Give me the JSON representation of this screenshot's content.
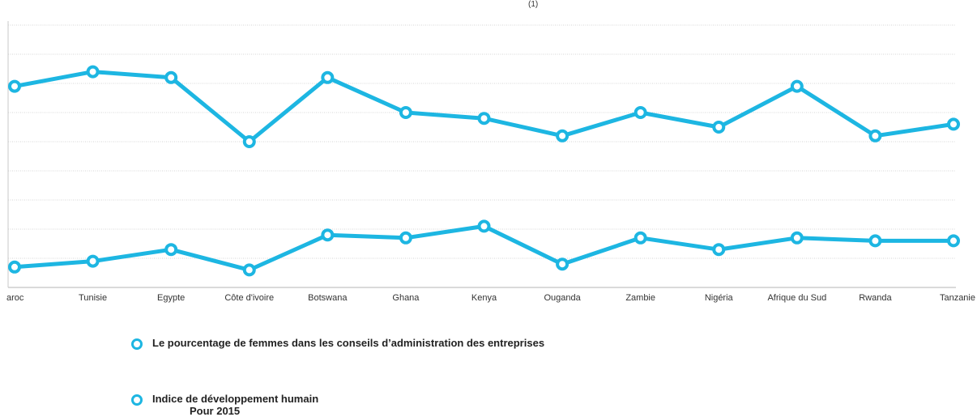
{
  "chart_data": {
    "type": "line",
    "top_mark": "(1)",
    "categories": [
      "aroc",
      "Tunisie",
      "Egypte",
      "Côte d'ivoire",
      "Botswana",
      "Ghana",
      "Kenya",
      "Ouganda",
      "Zambie",
      "Nigéria",
      "Afrique du Sud",
      "Rwanda",
      "Tanzanie"
    ],
    "series": [
      {
        "name": "Le pourcentage de femmes dans les conseils d’administration des entreprises",
        "values": [
          6.9,
          7.4,
          7.2,
          5.0,
          7.2,
          6.0,
          5.8,
          5.2,
          6.0,
          5.5,
          6.9,
          5.2,
          5.6
        ]
      },
      {
        "name": "Indice de développement humain",
        "name_note": "Pour 2015",
        "values": [
          0.7,
          0.9,
          1.3,
          0.6,
          1.8,
          1.7,
          2.1,
          0.8,
          1.7,
          1.3,
          1.7,
          1.6,
          1.6
        ]
      }
    ],
    "ylim": [
      0,
      9
    ],
    "grid": true,
    "legend_position": "bottom-left",
    "line_color": "#1db6e2"
  }
}
